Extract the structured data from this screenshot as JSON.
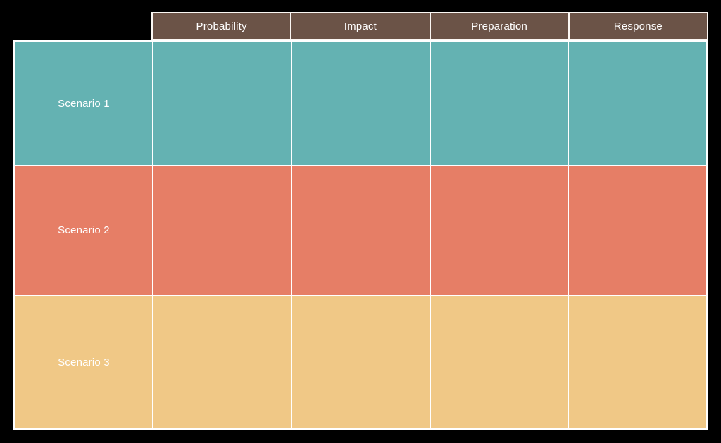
{
  "canvas": {
    "background": "#000000",
    "grid_color": "#ffffff"
  },
  "table": {
    "header": {
      "background": "#6b5347",
      "text_color": "#ffffff",
      "columns": [
        "Probability",
        "Impact",
        "Preparation",
        "Response"
      ]
    },
    "rows": [
      {
        "label": "Scenario 1",
        "color": "#64b2b2",
        "cells": [
          "",
          "",
          "",
          ""
        ]
      },
      {
        "label": "Scenario 2",
        "color": "#e67e66",
        "cells": [
          "",
          "",
          "",
          ""
        ]
      },
      {
        "label": "Scenario 3",
        "color": "#f0c886",
        "cells": [
          "",
          "",
          "",
          ""
        ]
      }
    ]
  }
}
